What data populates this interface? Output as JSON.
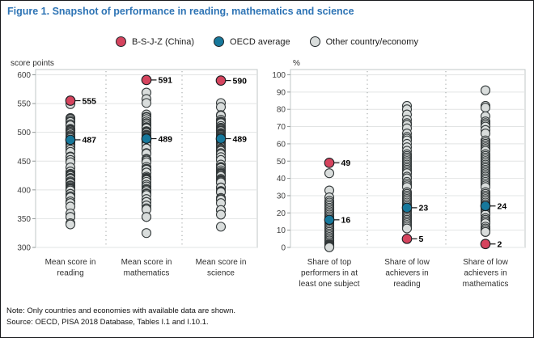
{
  "title": "Figure 1. Snapshot of performance in reading, mathematics and science",
  "note": "Note: Only countries and economies with available data are shown.",
  "source": "Source: OECD, PISA 2018 Database, Tables I.1 and I.10.1.",
  "colors": {
    "title_blue": "#2e74b5",
    "china_red": "#d5445e",
    "oecd_teal": "#17789b",
    "other_gray": "#d9dddc",
    "dot_stroke": "#33393a",
    "grid": "#e2e4e4",
    "frame": "#c2c7c7",
    "separator": "#a9adad",
    "tick_text": "#3d3d3d",
    "label_text": "#2f2f2f"
  },
  "legend": [
    {
      "label": "B-S-J-Z (China)",
      "color": "#d5445e"
    },
    {
      "label": "OECD average",
      "color": "#17789b"
    },
    {
      "label": "Other country/economy",
      "color": "#d9dddc"
    }
  ],
  "chart_data": [
    {
      "type": "scatter",
      "panel": "mean-scores",
      "ylabel": "score points",
      "ylim": [
        300,
        600
      ],
      "yticks": [
        300,
        350,
        400,
        450,
        500,
        550,
        600
      ],
      "grid": true,
      "categories": [
        [
          "Mean score in",
          "reading"
        ],
        [
          "Mean score in",
          "mathematics"
        ],
        [
          "Mean score in",
          "science"
        ]
      ],
      "series": [
        {
          "name": "B-S-J-Z (China)",
          "role": "china",
          "labeled": true,
          "values": [
            555,
            591,
            590
          ]
        },
        {
          "name": "OECD average",
          "role": "oecd",
          "labeled": true,
          "values": [
            487,
            489,
            489
          ]
        },
        {
          "name": "Other country/economy",
          "role": "other",
          "labeled": false,
          "values": [
            [
              549,
              525,
              524,
              523,
              520,
              520,
              518,
              514,
              512,
              506,
              506,
              505,
              504,
              504,
              503,
              503,
              501,
              499,
              498,
              495,
              493,
              493,
              492,
              490,
              485,
              484,
              484,
              479,
              479,
              479,
              476,
              476,
              476,
              474,
              474,
              470,
              470,
              466,
              466,
              458,
              457,
              452,
              448,
              439,
              432,
              428,
              427,
              426,
              424,
              424,
              421,
              420,
              420,
              419,
              415,
              413,
              412,
              408,
              407,
              405,
              403,
              402,
              401,
              399,
              393,
              393,
              389,
              387,
              380,
              377,
              371,
              359,
              353,
              353,
              342,
              340
            ],
            [
              569,
              558,
              551,
              531,
              527,
              526,
              523,
              519,
              516,
              515,
              512,
              509,
              509,
              508,
              507,
              502,
              502,
              501,
              500,
              500,
              499,
              499,
              496,
              495,
              495,
              494,
              492,
              491,
              488,
              487,
              486,
              483,
              481,
              481,
              481,
              478,
              472,
              472,
              464,
              463,
              454,
              453,
              451,
              451,
              448,
              440,
              437,
              436,
              435,
              430,
              430,
              430,
              423,
              421,
              420,
              419,
              418,
              417,
              414,
              409,
              406,
              402,
              400,
              400,
              398,
              394,
              393,
              391,
              384,
              379,
              379,
              373,
              368,
              366,
              353,
              353,
              325
            ],
            [
              551,
              544,
              530,
              529,
              522,
              519,
              518,
              517,
              516,
              511,
              508,
              507,
              505,
              503,
              503,
              503,
              502,
              499,
              498,
              497,
              496,
              495,
              493,
              493,
              492,
              490,
              490,
              487,
              483,
              482,
              481,
              478,
              477,
              475,
              472,
              471,
              469,
              468,
              468,
              464,
              462,
              457,
              452,
              444,
              440,
              439,
              438,
              434,
              431,
              429,
              428,
              426,
              426,
              426,
              424,
              419,
              419,
              417,
              416,
              415,
              413,
              413,
              404,
              404,
              404,
              398,
              398,
              397,
              396,
              386,
              384,
              383,
              377,
              365,
              365,
              357,
              336
            ]
          ]
        }
      ]
    },
    {
      "type": "scatter",
      "panel": "shares-percent",
      "ylabel": "%",
      "ylim": [
        0,
        100
      ],
      "yticks": [
        0,
        10,
        20,
        30,
        40,
        50,
        60,
        70,
        80,
        90,
        100
      ],
      "grid": true,
      "categories": [
        [
          "Share of top",
          "performers in at",
          "least one subject"
        ],
        [
          "Share of low",
          "achievers in",
          "reading"
        ],
        [
          "Share of low",
          "achievers in",
          "mathematics"
        ]
      ],
      "series": [
        {
          "name": "B-S-J-Z (China)",
          "role": "china",
          "labeled": true,
          "values": [
            49,
            5,
            2
          ]
        },
        {
          "name": "OECD average",
          "role": "oecd",
          "labeled": true,
          "values": [
            16,
            23,
            24
          ]
        },
        {
          "name": "Other country/economy",
          "role": "other",
          "labeled": false,
          "values": [
            [
              43,
              33,
              29,
              27,
              26,
              25,
              24,
              23,
              23,
              22,
              22,
              21,
              20,
              20,
              19,
              18,
              18,
              17,
              16,
              16,
              15,
              15,
              14,
              14,
              13,
              13,
              12,
              12,
              11,
              11,
              10,
              10,
              9,
              9,
              8,
              8,
              7,
              7,
              7,
              6,
              6,
              5,
              5,
              4,
              4,
              4,
              3,
              3,
              3,
              2,
              2,
              2,
              2,
              1.5,
              1.5,
              1,
              1,
              1,
              1,
              1,
              0.8,
              0.6,
              0.5,
              0.4,
              0.3,
              0.2,
              0.1
            ],
            [
              82,
              80,
              77,
              74,
              72,
              71,
              69,
              66,
              64,
              63,
              62,
              60,
              58,
              56,
              54,
              53,
              52,
              52,
              51,
              50,
              50,
              49,
              48,
              47,
              46,
              45,
              45,
              44,
              43,
              43,
              41,
              40,
              38,
              37,
              36,
              35,
              32,
              31,
              31,
              30,
              29,
              28,
              28,
              27,
              26,
              25,
              25,
              24,
              23,
              23,
              22,
              22,
              21,
              21,
              20,
              19,
              19,
              18,
              18,
              17,
              16,
              16,
              15,
              15,
              14,
              14,
              13,
              13,
              12,
              11,
              11
            ],
            [
              91,
              82,
              81,
              76,
              73,
              72,
              71,
              70,
              68,
              66,
              62,
              61,
              60,
              59,
              58,
              57,
              57,
              56,
              54,
              53,
              52,
              51,
              50,
              50,
              49,
              48,
              47,
              46,
              46,
              45,
              44,
              44,
              43,
              42,
              41,
              40,
              39,
              38,
              37,
              36,
              35,
              32,
              31,
              30,
              29,
              29,
              28,
              27,
              26,
              25,
              25,
              24,
              23,
              22,
              22,
              21,
              21,
              20,
              19,
              19,
              17,
              16,
              15,
              15,
              14,
              12,
              11,
              10,
              10,
              9,
              9
            ]
          ]
        }
      ]
    }
  ]
}
